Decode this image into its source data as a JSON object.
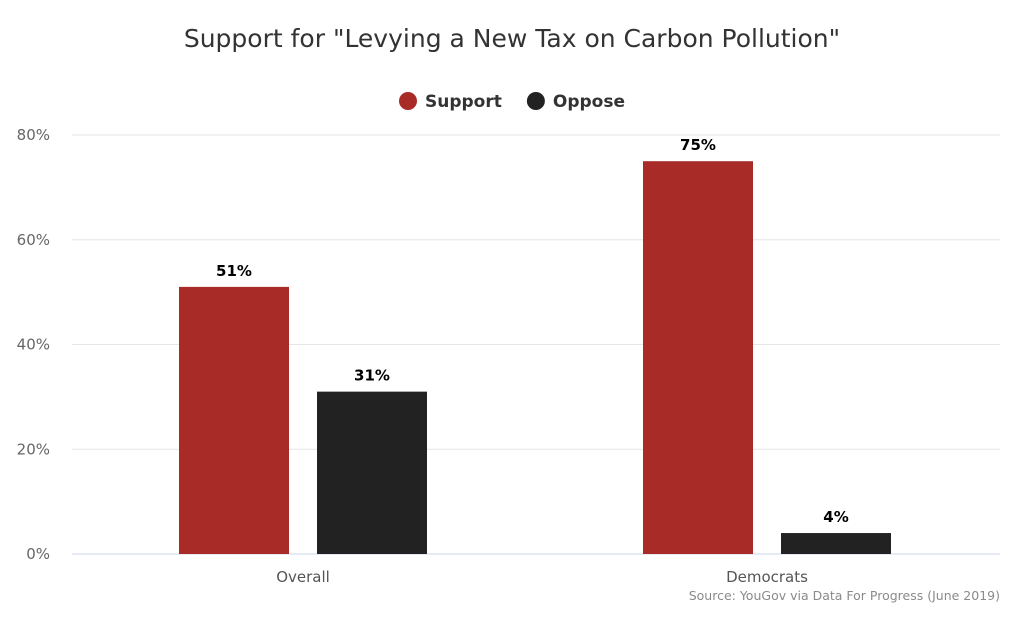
{
  "chart_data": {
    "type": "bar",
    "title": "Support for \"Levying a New Tax on Carbon Pollution\"",
    "categories": [
      "Overall",
      "Democrats"
    ],
    "series": [
      {
        "name": "Support",
        "values": [
          51,
          75
        ],
        "labels": [
          "51%",
          "75%"
        ],
        "color": "#a82b27"
      },
      {
        "name": "Oppose",
        "values": [
          31,
          4
        ],
        "labels": [
          "31%",
          "4%"
        ],
        "color": "#222222"
      }
    ],
    "ylim": [
      0,
      80
    ],
    "yticks": [
      0,
      20,
      40,
      60,
      80
    ],
    "ytick_labels": [
      "0%",
      "20%",
      "40%",
      "60%",
      "80%"
    ],
    "grid": true,
    "legend_position": "top-center",
    "source": "Source: YouGov via Data For Progress (June 2019)"
  }
}
